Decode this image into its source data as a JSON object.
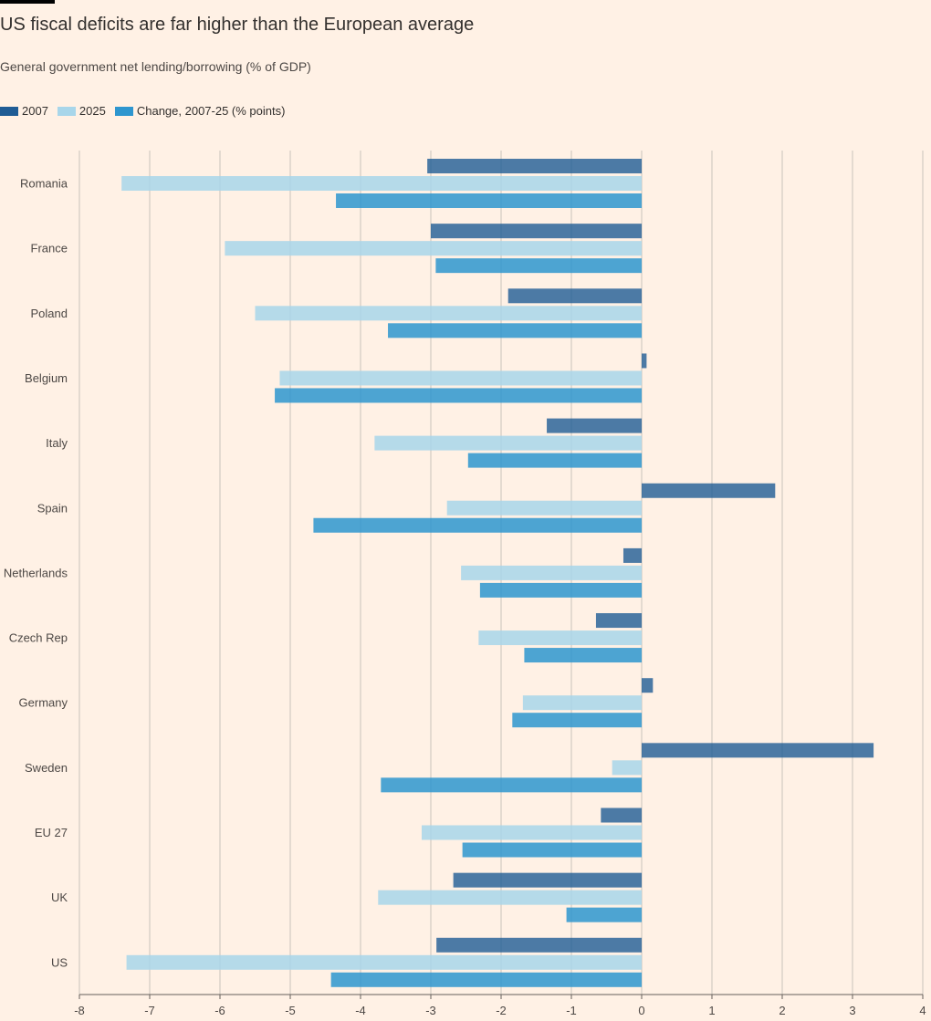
{
  "title": "US fiscal deficits are far higher than the European average",
  "subtitle": "General government net lending/borrowing (% of GDP)",
  "colors": {
    "background": "#fff1e5",
    "series_2007": "#1f5c95",
    "series_2025": "#a8d6ea",
    "series_change": "#2e96cf",
    "grid": "#c9c3bc"
  },
  "legend": [
    {
      "label": "2007",
      "color": "#1f5c95"
    },
    {
      "label": "2025",
      "color": "#a8d6ea"
    },
    {
      "label": "Change, 2007-25 (% points)",
      "color": "#2e96cf"
    }
  ],
  "chart_data": {
    "type": "bar",
    "orientation": "horizontal",
    "categories": [
      "Romania",
      "France",
      "Poland",
      "Belgium",
      "Italy",
      "Spain",
      "Netherlands",
      "Czech Rep",
      "Germany",
      "Sweden",
      "EU 27",
      "UK",
      "US"
    ],
    "series": [
      {
        "name": "2007",
        "values": [
          -3.05,
          -3.0,
          -1.9,
          0.07,
          -1.35,
          1.9,
          -0.26,
          -0.65,
          0.16,
          3.3,
          -0.58,
          -2.68,
          -2.92
        ]
      },
      {
        "name": "2025",
        "values": [
          -7.4,
          -5.93,
          -5.5,
          -5.15,
          -3.8,
          -2.77,
          -2.57,
          -2.32,
          -1.69,
          -0.42,
          -3.13,
          -3.75,
          -7.33
        ]
      },
      {
        "name": "Change, 2007-25 (% points)",
        "values": [
          -4.35,
          -2.93,
          -3.61,
          -5.22,
          -2.47,
          -4.67,
          -2.3,
          -1.67,
          -1.84,
          -3.71,
          -2.55,
          -1.07,
          -4.42
        ]
      }
    ],
    "xlim": [
      -8,
      4
    ],
    "xticks": [
      "-8",
      "-7",
      "-6",
      "-5",
      "-4",
      "-3",
      "-2",
      "-1",
      "0",
      "1",
      "2",
      "3",
      "4"
    ],
    "grid": true,
    "legend_position": "top-left"
  }
}
